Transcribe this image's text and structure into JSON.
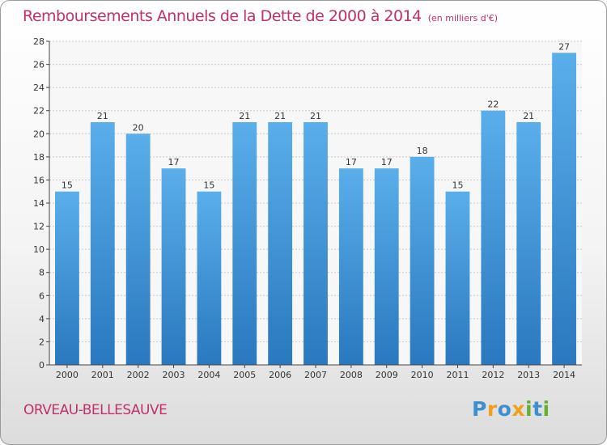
{
  "chart_data": {
    "type": "bar",
    "title": "Remboursements Annuels de la Dette de 2000 à 2014",
    "subtitle": "(en milliers d'€)",
    "categories": [
      "2000",
      "2001",
      "2002",
      "2003",
      "2004",
      "2005",
      "2006",
      "2007",
      "2008",
      "2009",
      "2010",
      "2011",
      "2012",
      "2013",
      "2014"
    ],
    "values": [
      15,
      21,
      20,
      17,
      15,
      21,
      21,
      21,
      17,
      17,
      18,
      15,
      22,
      21,
      27
    ],
    "ylim": [
      0,
      28
    ],
    "yticks": [
      0,
      2,
      4,
      6,
      8,
      10,
      12,
      14,
      16,
      18,
      20,
      22,
      24,
      26,
      28
    ],
    "grid": true,
    "bar_color": "#3a8fd6"
  },
  "footer": {
    "commune": "ORVEAU-BELLESAUVE",
    "logo_letters": [
      "P",
      "r",
      "o",
      "x",
      "i",
      "t",
      "i"
    ],
    "logo_colors": [
      "#3e8ed0",
      "#f0a020",
      "#3e8ed0",
      "#f0a020",
      "#66b030",
      "#3e8ed0",
      "#66b030"
    ]
  }
}
